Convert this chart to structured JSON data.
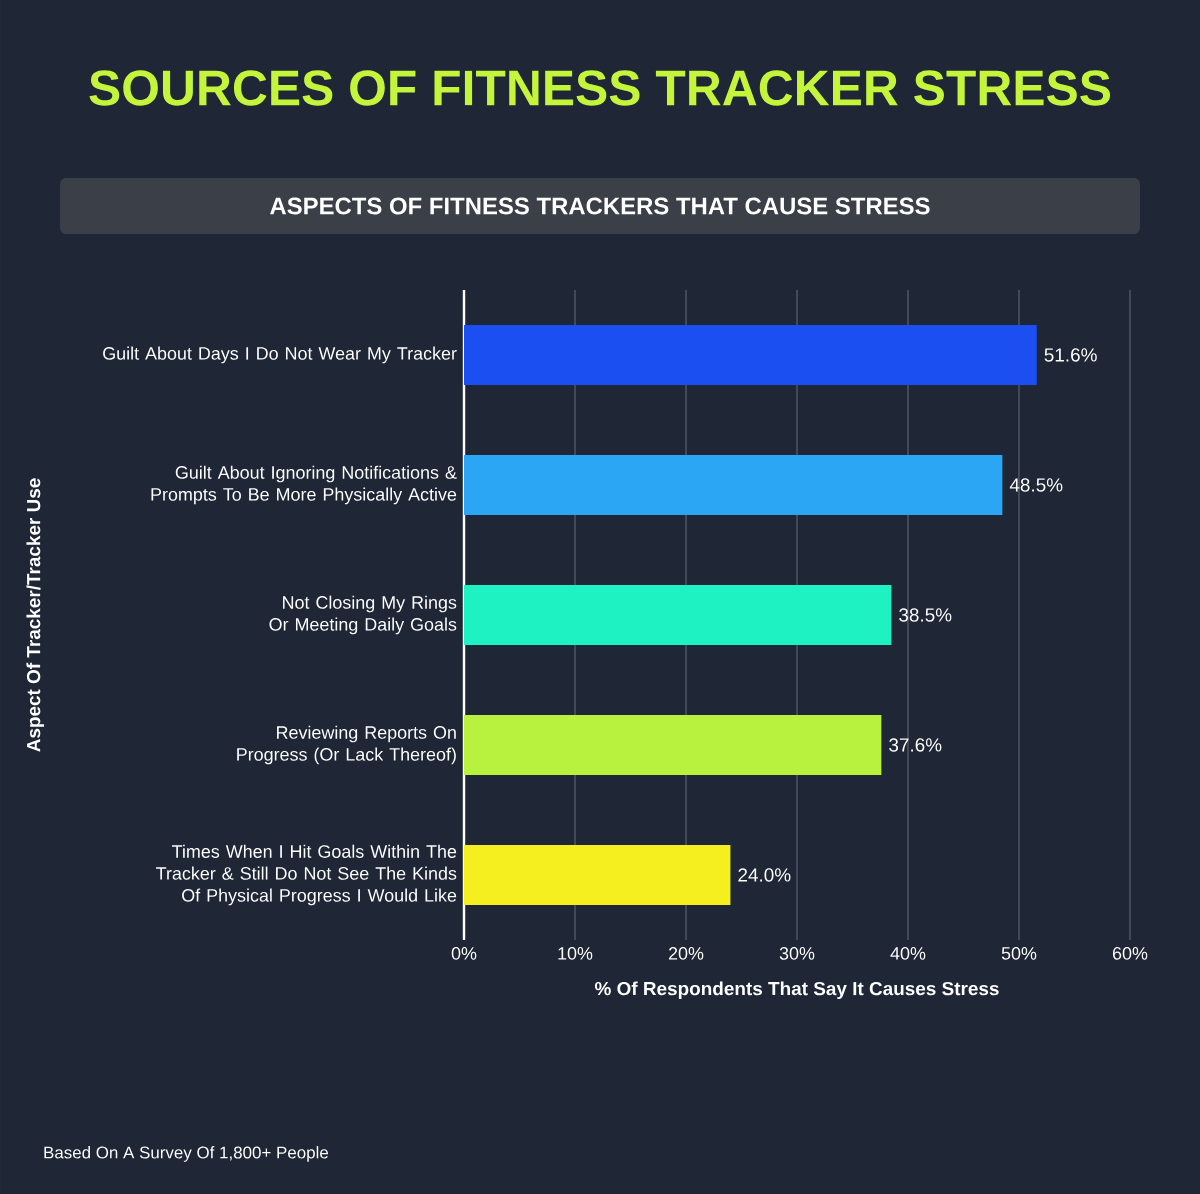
{
  "chart_data": {
    "type": "bar",
    "orientation": "horizontal",
    "title": "SOURCES OF FITNESS TRACKER STRESS",
    "subtitle": "ASPECTS OF FITNESS TRACKERS THAT CAUSE STRESS",
    "xlabel": "% Of Respondents That Say It Causes Stress",
    "ylabel": "Aspect Of Tracker/Tracker Use",
    "categories": [
      "Guilt About Days I Do Not Wear My Tracker",
      "Guilt About Ignoring Notifications & Prompts To Be More Physically Active",
      "Not Closing My Rings Or Meeting Daily Goals",
      "Reviewing Reports On Progress (Or Lack Thereof)",
      "Times When I Hit Goals Within The Tracker & Still Do Not See The Kinds Of Physical Progress I Would Like"
    ],
    "values": [
      51.6,
      48.5,
      38.5,
      37.6,
      24.0
    ],
    "value_labels": [
      "51.6%",
      "48.5%",
      "38.5%",
      "37.6%",
      "24.0%"
    ],
    "colors": [
      "#1b4ff2",
      "#2aa6f4",
      "#1ff2c2",
      "#b8f23e",
      "#f5ef1f"
    ],
    "xlim": [
      0,
      60
    ],
    "xticks": [
      {
        "value": 0,
        "label": "0%"
      },
      {
        "value": 10,
        "label": "10%"
      },
      {
        "value": 20,
        "label": "20%"
      },
      {
        "value": 30,
        "label": "30%"
      },
      {
        "value": 40,
        "label": "40%"
      },
      {
        "value": 50,
        "label": "50%"
      },
      {
        "value": 60,
        "label": "60%"
      }
    ],
    "grid": "x",
    "annotations": [
      "Based On A Survey Of 1,800+ People"
    ]
  }
}
